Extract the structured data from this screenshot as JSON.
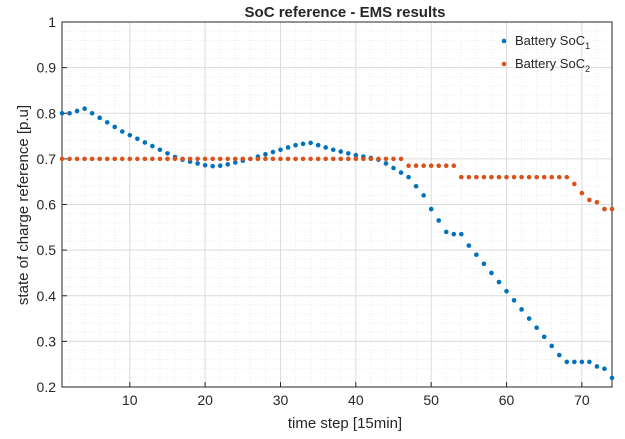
{
  "chart_data": {
    "type": "scatter",
    "title": "SoC reference - EMS results",
    "xlabel": "time step [15min]",
    "ylabel": "state of charge reference [p.u]",
    "xlim": [
      1,
      74
    ],
    "ylim": [
      0.2,
      1.0
    ],
    "xticks": [
      "10",
      "20",
      "30",
      "40",
      "50",
      "60",
      "70"
    ],
    "yticks": [
      "0.2",
      "0.3",
      "0.4",
      "0.5",
      "0.6",
      "0.7",
      "0.8",
      "0.9",
      "1"
    ],
    "grid": "major and minor",
    "legend_position": "top-right",
    "series": [
      {
        "name": "Battery SoC",
        "name_subscript": "1",
        "color": "#0072BD",
        "x": [
          1,
          2,
          3,
          4,
          5,
          6,
          7,
          8,
          9,
          10,
          11,
          12,
          13,
          14,
          15,
          16,
          17,
          18,
          19,
          20,
          21,
          22,
          23,
          24,
          25,
          26,
          27,
          28,
          29,
          30,
          31,
          32,
          33,
          34,
          35,
          36,
          37,
          38,
          39,
          40,
          41,
          42,
          43,
          44,
          45,
          46,
          47,
          48,
          49,
          50,
          51,
          52,
          53,
          54,
          55,
          56,
          57,
          58,
          59,
          60,
          61,
          62,
          63,
          64,
          65,
          66,
          67,
          68,
          69,
          70,
          71,
          72,
          73,
          74
        ],
        "y": [
          0.8,
          0.8,
          0.805,
          0.81,
          0.8,
          0.79,
          0.78,
          0.77,
          0.76,
          0.752,
          0.744,
          0.736,
          0.728,
          0.72,
          0.712,
          0.704,
          0.698,
          0.694,
          0.69,
          0.686,
          0.684,
          0.685,
          0.688,
          0.692,
          0.696,
          0.7,
          0.705,
          0.71,
          0.715,
          0.72,
          0.725,
          0.73,
          0.733,
          0.735,
          0.73,
          0.725,
          0.72,
          0.716,
          0.712,
          0.708,
          0.705,
          0.702,
          0.698,
          0.69,
          0.68,
          0.67,
          0.66,
          0.64,
          0.62,
          0.59,
          0.565,
          0.54,
          0.535,
          0.535,
          0.51,
          0.49,
          0.47,
          0.45,
          0.43,
          0.41,
          0.39,
          0.37,
          0.35,
          0.33,
          0.31,
          0.29,
          0.27,
          0.255,
          0.255,
          0.255,
          0.255,
          0.245,
          0.24,
          0.22
        ]
      },
      {
        "name": "Battery SoC",
        "name_subscript": "2",
        "color": "#D95319",
        "x": [
          1,
          2,
          3,
          4,
          5,
          6,
          7,
          8,
          9,
          10,
          11,
          12,
          13,
          14,
          15,
          16,
          17,
          18,
          19,
          20,
          21,
          22,
          23,
          24,
          25,
          26,
          27,
          28,
          29,
          30,
          31,
          32,
          33,
          34,
          35,
          36,
          37,
          38,
          39,
          40,
          41,
          42,
          43,
          44,
          45,
          46,
          47,
          48,
          49,
          50,
          51,
          52,
          53,
          54,
          55,
          56,
          57,
          58,
          59,
          60,
          61,
          62,
          63,
          64,
          65,
          66,
          67,
          68,
          69,
          70,
          71,
          72,
          73,
          74
        ],
        "y": [
          0.7,
          0.7,
          0.7,
          0.7,
          0.7,
          0.7,
          0.7,
          0.7,
          0.7,
          0.7,
          0.7,
          0.7,
          0.7,
          0.7,
          0.7,
          0.7,
          0.7,
          0.7,
          0.7,
          0.7,
          0.7,
          0.7,
          0.7,
          0.7,
          0.7,
          0.7,
          0.7,
          0.7,
          0.7,
          0.7,
          0.7,
          0.7,
          0.7,
          0.7,
          0.7,
          0.7,
          0.7,
          0.7,
          0.7,
          0.7,
          0.7,
          0.7,
          0.7,
          0.7,
          0.7,
          0.7,
          0.685,
          0.685,
          0.685,
          0.685,
          0.685,
          0.685,
          0.685,
          0.66,
          0.66,
          0.66,
          0.66,
          0.66,
          0.66,
          0.66,
          0.66,
          0.66,
          0.66,
          0.66,
          0.66,
          0.66,
          0.66,
          0.66,
          0.645,
          0.625,
          0.61,
          0.605,
          0.59,
          0.59
        ]
      }
    ]
  }
}
